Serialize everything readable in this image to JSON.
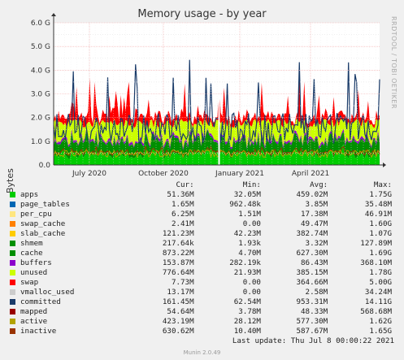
{
  "chart_data": {
    "type": "area",
    "title": "Memory usage - by year",
    "ylabel": "Bytes",
    "ylim": [
      0,
      6
    ],
    "yticks": [
      "0.0",
      "1.0 G",
      "2.0 G",
      "3.0 G",
      "4.0 G",
      "5.0 G",
      "6.0 G"
    ],
    "xticks": [
      "July 2020",
      "October 2020",
      "January 2021",
      "April 2021"
    ],
    "grid": true,
    "watermark": "RRDTOOL / TOBI OETIKER",
    "columns": [
      "Cur:",
      "Min:",
      "Avg:",
      "Max:"
    ],
    "series": [
      {
        "name": "apps",
        "color": "#00cc00",
        "cur": "51.36M",
        "min": "32.05M",
        "avg": "459.02M",
        "max": "1.75G"
      },
      {
        "name": "page_tables",
        "color": "#0066b3",
        "cur": "1.65M",
        "min": "962.48k",
        "avg": "3.85M",
        "max": "35.48M"
      },
      {
        "name": "per_cpu",
        "color": "#ffe680",
        "cur": "6.25M",
        "min": "1.51M",
        "avg": "17.38M",
        "max": "46.91M"
      },
      {
        "name": "swap_cache",
        "color": "#ff8000",
        "cur": "2.41M",
        "min": "0.00",
        "avg": "49.47M",
        "max": "1.60G"
      },
      {
        "name": "slab_cache",
        "color": "#ffcc00",
        "cur": "121.23M",
        "min": "42.23M",
        "avg": "382.74M",
        "max": "1.07G"
      },
      {
        "name": "shmem",
        "color": "#008f00",
        "cur": "217.64k",
        "min": "1.93k",
        "avg": "3.32M",
        "max": "127.89M"
      },
      {
        "name": "cache",
        "color": "#008f00",
        "cur": "873.22M",
        "min": "4.70M",
        "avg": "627.30M",
        "max": "1.69G"
      },
      {
        "name": "buffers",
        "color": "#8b00cc",
        "cur": "153.87M",
        "min": "282.19k",
        "avg": "86.43M",
        "max": "368.10M"
      },
      {
        "name": "unused",
        "color": "#ccff00",
        "cur": "776.64M",
        "min": "21.93M",
        "avg": "385.15M",
        "max": "1.78G"
      },
      {
        "name": "swap",
        "color": "#ff0000",
        "cur": "7.73M",
        "min": "0.00",
        "avg": "364.66M",
        "max": "5.00G"
      },
      {
        "name": "vmalloc_used",
        "color": "#cccccc",
        "cur": "13.17M",
        "min": "0.00",
        "avg": "2.58M",
        "max": "34.24M"
      },
      {
        "name": "committed",
        "color": "#1a3b69",
        "cur": "161.45M",
        "min": "62.54M",
        "avg": "953.31M",
        "max": "14.11G"
      },
      {
        "name": "mapped",
        "color": "#990000",
        "cur": "54.64M",
        "min": "3.78M",
        "avg": "48.33M",
        "max": "568.68M"
      },
      {
        "name": "active",
        "color": "#b3a300",
        "cur": "423.19M",
        "min": "28.12M",
        "avg": "577.30M",
        "max": "1.62G"
      },
      {
        "name": "inactive",
        "color": "#993300",
        "cur": "630.62M",
        "min": "10.40M",
        "avg": "587.67M",
        "max": "1.65G"
      }
    ]
  },
  "last_update": "Last update: Thu Jul  8 00:00:22 2021",
  "footer": "Munin 2.0.49"
}
